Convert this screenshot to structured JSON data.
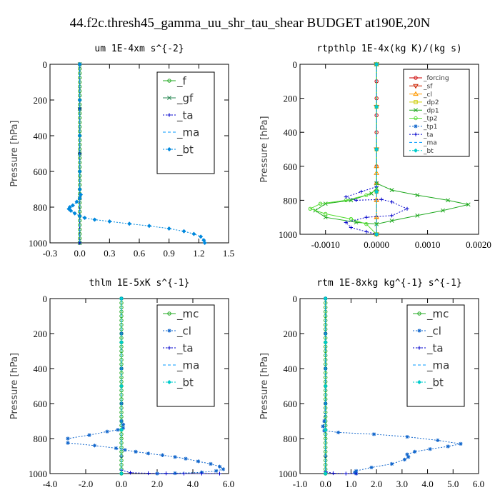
{
  "figure_title": "44.f2c.thresh45_gamma_uu_shr_tau_shear  BUDGET at190E,20N",
  "chart_data": [
    {
      "type": "line",
      "title": "um  1E-4xm s^{-2}",
      "ylabel": "Pressure [hPa]",
      "xlim": [
        -0.3,
        1.5
      ],
      "ylim": [
        1000,
        0
      ],
      "xticks": [
        "-0.3",
        "0.0",
        "0.3",
        "0.6",
        "0.9",
        "1.2",
        "1.5"
      ],
      "xtick_values": [
        -0.3,
        0.0,
        0.3,
        0.6,
        0.9,
        1.2,
        1.5
      ],
      "yticks": [
        "0",
        "200",
        "400",
        "600",
        "800",
        "1000"
      ],
      "ytick_values": [
        0,
        200,
        400,
        600,
        800,
        1000
      ],
      "legend_font": 15,
      "series": [
        {
          "name": "_f",
          "color": "#22aa22",
          "marker": "o",
          "dash": "",
          "x": [
            0,
            0,
            0,
            0,
            0,
            0,
            0,
            0,
            0,
            0,
            0,
            0,
            0,
            0,
            0,
            0,
            0,
            0,
            0,
            0,
            0,
            0,
            0,
            0,
            0,
            0,
            0,
            0,
            0,
            0,
            0,
            0,
            0,
            0,
            0,
            0,
            0,
            0,
            0,
            0,
            0
          ],
          "y": [
            0,
            25,
            50,
            75,
            100,
            125,
            150,
            175,
            200,
            225,
            250,
            275,
            300,
            325,
            350,
            375,
            400,
            425,
            450,
            475,
            500,
            525,
            550,
            575,
            600,
            625,
            650,
            675,
            700,
            725,
            750,
            775,
            800,
            825,
            850,
            875,
            900,
            925,
            950,
            975,
            1000
          ]
        },
        {
          "name": "_gf",
          "color": "#2e8b57",
          "marker": "x",
          "dash": "",
          "x": [
            0,
            0,
            0,
            0,
            0
          ],
          "y": [
            0,
            250,
            500,
            750,
            1000
          ]
        },
        {
          "name": "_ta",
          "color": "#0000cc",
          "marker": "+",
          "dash": "2,2",
          "x": [
            0,
            0,
            0,
            0,
            0
          ],
          "y": [
            0,
            250,
            500,
            750,
            1000
          ]
        },
        {
          "name": "_ma",
          "color": "#0099ff",
          "marker": "-",
          "dash": "4,3",
          "x": [
            0,
            0,
            0,
            0,
            0
          ],
          "y": [
            0,
            250,
            500,
            750,
            1000
          ]
        },
        {
          "name": "_bt",
          "color": "#0088dd",
          "marker": "D",
          "dash": "2,2",
          "x": [
            0,
            0,
            0,
            0,
            0,
            0.01,
            0.0,
            -0.03,
            -0.07,
            -0.1,
            -0.11,
            -0.09,
            -0.05,
            0.0,
            0.05,
            0.15,
            0.3,
            0.5,
            0.7,
            0.9,
            1.05,
            1.15,
            1.22,
            1.25,
            1.26
          ],
          "y": [
            0,
            200,
            400,
            600,
            700,
            730,
            750,
            770,
            790,
            800,
            810,
            820,
            835,
            850,
            860,
            870,
            880,
            893,
            905,
            920,
            935,
            950,
            965,
            985,
            1000
          ]
        }
      ]
    },
    {
      "type": "line",
      "title": "rtpthlp  1E-4x(kg K)/(kg s)",
      "ylabel": "Pressure [hPa]",
      "xlim": [
        -0.0015,
        0.002
      ],
      "ylim": [
        1000,
        0
      ],
      "xticks": [
        "-0.0010",
        "0.0000",
        "0.0010",
        "0.0020"
      ],
      "xtick_values": [
        -0.001,
        0.0,
        0.001,
        0.002
      ],
      "yticks": [
        "0",
        "200",
        "400",
        "600",
        "800",
        "1000"
      ],
      "ytick_values": [
        0,
        200,
        400,
        600,
        800,
        1000
      ],
      "legend_font": 9,
      "series": [
        {
          "name": "_forcing",
          "color": "#cc0000",
          "marker": "o",
          "dash": "",
          "x": [
            0,
            0,
            0,
            0,
            0,
            0,
            0,
            0,
            0,
            0,
            0
          ],
          "y": [
            0,
            100,
            200,
            300,
            400,
            500,
            600,
            700,
            800,
            900,
            1000
          ]
        },
        {
          "name": "_sf",
          "color": "#cc2200",
          "marker": "v",
          "dash": "",
          "x": [
            0,
            0,
            0,
            0,
            0
          ],
          "y": [
            0,
            250,
            500,
            750,
            1000
          ]
        },
        {
          "name": "_cl",
          "color": "#ff9900",
          "marker": "^",
          "dash": "",
          "x": [
            0,
            0,
            0,
            0,
            0,
            0,
            0
          ],
          "y": [
            0,
            600,
            640,
            700,
            800,
            900,
            1000
          ]
        },
        {
          "name": "_dp2",
          "color": "#cccc00",
          "marker": "s",
          "dash": "",
          "x": [
            0,
            0,
            0,
            0,
            0
          ],
          "y": [
            0,
            250,
            500,
            750,
            1000
          ]
        },
        {
          "name": "_dp1",
          "color": "#22aa22",
          "marker": "x",
          "dash": "",
          "x": [
            0,
            0.0,
            0.0003,
            0.0008,
            0.0014,
            0.0018,
            0.0013,
            0.0008,
            0.0003,
            0.0,
            -0.0004,
            -0.001,
            -0.0012,
            -0.001,
            -0.0005,
            -0.0001,
            0
          ],
          "y": [
            0,
            700,
            740,
            770,
            800,
            825,
            860,
            890,
            920,
            940,
            930,
            900,
            860,
            820,
            800,
            760,
            730
          ]
        },
        {
          "name": "_tp2",
          "color": "#55dd33",
          "marker": "o",
          "dash": "",
          "x": [
            0,
            0,
            -0.0002,
            -0.0006,
            -0.0011,
            -0.0013,
            -0.001,
            -0.0005,
            -0.0002,
            0.0
          ],
          "y": [
            0,
            740,
            770,
            800,
            820,
            850,
            880,
            910,
            940,
            1000
          ]
        },
        {
          "name": "_tp1",
          "color": "#1166cc",
          "marker": "*",
          "dash": "2,2",
          "x": [
            0,
            0,
            0,
            0,
            0
          ],
          "y": [
            0,
            250,
            500,
            750,
            1000
          ]
        },
        {
          "name": "_ta",
          "color": "#0000cc",
          "marker": "+",
          "dash": "2,2",
          "x": [
            0,
            0,
            -0.0003,
            -0.0006,
            -0.0004,
            0.0001,
            0.0003,
            0.0006,
            0.0003,
            -0.0002,
            -0.0006,
            -0.0005,
            -0.0002,
            0
          ],
          "y": [
            0,
            720,
            750,
            780,
            800,
            795,
            810,
            850,
            890,
            900,
            930,
            960,
            985,
            1000
          ]
        },
        {
          "name": "_ma",
          "color": "#0099ff",
          "marker": "-",
          "dash": "4,3",
          "x": [
            0,
            0,
            0,
            0,
            0
          ],
          "y": [
            0,
            250,
            500,
            750,
            1000
          ]
        },
        {
          "name": "_bt",
          "color": "#00cccc",
          "marker": "D",
          "dash": "2,2",
          "x": [
            0,
            0,
            0,
            0,
            0
          ],
          "y": [
            0,
            250,
            500,
            750,
            1000
          ]
        }
      ]
    },
    {
      "type": "line",
      "title": "thlm  1E-5xK s^{-1}",
      "ylabel": "Pressure [hPa]",
      "xlim": [
        -4.0,
        6.0
      ],
      "ylim": [
        1000,
        0
      ],
      "xticks": [
        "-4.0",
        "-2.0",
        "0.0",
        "2.0",
        "4.0",
        "6.0"
      ],
      "xtick_values": [
        -4,
        -2,
        0,
        2,
        4,
        6
      ],
      "yticks": [
        "0",
        "200",
        "400",
        "600",
        "800",
        "1000"
      ],
      "ytick_values": [
        0,
        200,
        400,
        600,
        800,
        1000
      ],
      "legend_font": 15,
      "series": [
        {
          "name": "_mc",
          "color": "#22aa22",
          "marker": "o",
          "dash": "",
          "x": [
            0,
            0,
            0,
            0,
            0,
            0,
            0,
            0,
            0,
            0,
            0,
            0,
            0,
            0,
            0,
            0,
            0,
            0,
            0,
            0,
            0,
            0,
            0,
            0,
            0,
            0,
            0,
            0,
            0,
            0,
            0,
            0,
            0,
            0,
            0,
            0,
            0,
            0,
            0,
            0,
            0
          ],
          "y": [
            0,
            25,
            50,
            75,
            100,
            125,
            150,
            175,
            200,
            225,
            250,
            275,
            300,
            325,
            350,
            375,
            400,
            425,
            450,
            475,
            500,
            525,
            550,
            575,
            600,
            625,
            650,
            675,
            700,
            725,
            750,
            775,
            800,
            825,
            850,
            875,
            900,
            925,
            950,
            975,
            1000
          ]
        },
        {
          "name": "_cl",
          "color": "#1166cc",
          "marker": "*",
          "dash": "2,2",
          "x": [
            0,
            0,
            0,
            0,
            0,
            0.1,
            0.1,
            -0.2,
            -0.8,
            -1.8,
            -3.0,
            -3.0,
            -1.5,
            -0.3,
            0.2,
            0.8,
            1.5,
            2.3,
            3.0,
            3.6,
            4.3,
            5.0,
            5.5,
            5.7,
            5.3,
            4.5,
            3.0,
            2.0
          ],
          "y": [
            0,
            200,
            400,
            600,
            700,
            720,
            740,
            750,
            760,
            780,
            800,
            825,
            840,
            855,
            865,
            875,
            885,
            895,
            905,
            915,
            930,
            945,
            960,
            975,
            985,
            993,
            998,
            1000
          ]
        },
        {
          "name": "_ta",
          "color": "#0000cc",
          "marker": "+",
          "dash": "2,2",
          "x": [
            0,
            0,
            0,
            0,
            0.5,
            1.5,
            2.5,
            3.5,
            4.5,
            5.5
          ],
          "y": [
            0,
            500,
            900,
            980,
            995,
            998,
            999,
            1000,
            1000,
            1000
          ]
        },
        {
          "name": "_ma",
          "color": "#0099ff",
          "marker": "-",
          "dash": "4,3",
          "x": [
            0,
            0,
            0,
            0,
            0
          ],
          "y": [
            0,
            250,
            500,
            750,
            1000
          ]
        },
        {
          "name": "_bt",
          "color": "#00cccc",
          "marker": "D",
          "dash": "2,2",
          "x": [
            0,
            0,
            0,
            0,
            0
          ],
          "y": [
            0,
            250,
            500,
            750,
            1000
          ]
        }
      ]
    },
    {
      "type": "line",
      "title": "rtm  1E-8xkg kg^{-1} s^{-1}",
      "ylabel": "Pressure [hPa]",
      "xlim": [
        -1.0,
        6.0
      ],
      "ylim": [
        1000,
        0
      ],
      "xticks": [
        "-1.0",
        "0.0",
        "1.0",
        "2.0",
        "3.0",
        "4.0",
        "5.0",
        "6.0"
      ],
      "xtick_values": [
        -1,
        0,
        1,
        2,
        3,
        4,
        5,
        6
      ],
      "yticks": [
        "0",
        "200",
        "400",
        "600",
        "800",
        "1000"
      ],
      "ytick_values": [
        0,
        200,
        400,
        600,
        800,
        1000
      ],
      "legend_font": 15,
      "series": [
        {
          "name": "_mc",
          "color": "#22aa22",
          "marker": "o",
          "dash": "",
          "x": [
            0,
            0,
            0,
            0,
            0,
            0,
            0,
            0,
            0,
            0,
            0,
            0,
            0,
            0,
            0,
            0,
            0,
            0,
            0,
            0,
            0,
            0,
            0,
            0,
            0,
            0,
            0,
            0,
            0,
            0,
            0,
            0,
            0,
            0,
            0,
            0,
            0,
            0,
            0,
            0,
            0
          ],
          "y": [
            0,
            25,
            50,
            75,
            100,
            125,
            150,
            175,
            200,
            225,
            250,
            275,
            300,
            325,
            350,
            375,
            400,
            425,
            450,
            475,
            500,
            525,
            550,
            575,
            600,
            625,
            650,
            675,
            700,
            725,
            750,
            775,
            800,
            825,
            850,
            875,
            900,
            925,
            950,
            975,
            1000
          ]
        },
        {
          "name": "_cl",
          "color": "#1166cc",
          "marker": "*",
          "dash": "2,2",
          "x": [
            0,
            0,
            0,
            0,
            -0.05,
            -0.1,
            -0.05,
            0.5,
            1.9,
            3.2,
            4.4,
            5.3,
            4.8,
            4.1,
            3.5,
            3.2,
            3.25,
            3.1,
            2.6,
            1.8,
            1.2,
            1.15,
            1.2
          ],
          "y": [
            0,
            200,
            400,
            600,
            700,
            730,
            755,
            765,
            775,
            790,
            810,
            830,
            845,
            860,
            875,
            890,
            905,
            920,
            945,
            965,
            985,
            993,
            1000
          ]
        },
        {
          "name": "_ta",
          "color": "#0000cc",
          "marker": "+",
          "dash": "2,2",
          "x": [
            0,
            0,
            0,
            0,
            0.3,
            0.8,
            1.2
          ],
          "y": [
            0,
            500,
            900,
            990,
            998,
            1000,
            1000
          ]
        },
        {
          "name": "_ma",
          "color": "#0099ff",
          "marker": "-",
          "dash": "4,3",
          "x": [
            0,
            0,
            0,
            0,
            0
          ],
          "y": [
            0,
            250,
            500,
            750,
            1000
          ]
        },
        {
          "name": "_bt",
          "color": "#00cccc",
          "marker": "D",
          "dash": "2,2",
          "x": [
            0,
            0,
            0,
            0,
            0
          ],
          "y": [
            0,
            250,
            500,
            750,
            1000
          ]
        }
      ]
    }
  ]
}
